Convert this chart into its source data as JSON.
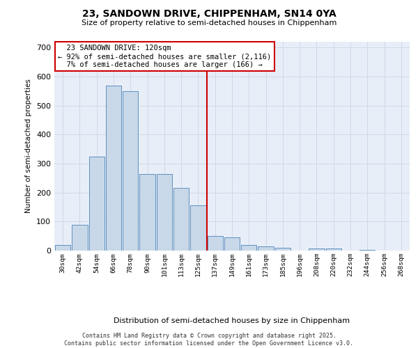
{
  "title1": "23, SANDOWN DRIVE, CHIPPENHAM, SN14 0YA",
  "title2": "Size of property relative to semi-detached houses in Chippenham",
  "xlabel": "Distribution of semi-detached houses by size in Chippenham",
  "ylabel": "Number of semi-detached properties",
  "categories": [
    "30sqm",
    "42sqm",
    "54sqm",
    "66sqm",
    "78sqm",
    "90sqm",
    "101sqm",
    "113sqm",
    "125sqm",
    "137sqm",
    "149sqm",
    "161sqm",
    "173sqm",
    "185sqm",
    "196sqm",
    "208sqm",
    "220sqm",
    "232sqm",
    "244sqm",
    "256sqm",
    "268sqm"
  ],
  "values": [
    20,
    90,
    325,
    570,
    550,
    265,
    265,
    215,
    155,
    50,
    45,
    20,
    15,
    10,
    0,
    8,
    8,
    0,
    2,
    0,
    0
  ],
  "bar_color": "#c8d8e8",
  "bar_edge_color": "#6090c0",
  "vline_x": 8.5,
  "annotation_text": "  23 SANDOWN DRIVE: 120sqm  \n← 92% of semi-detached houses are smaller (2,116)\n  7% of semi-detached houses are larger (166) →  ",
  "annotation_box_color": "#ffffff",
  "annotation_edge_color": "#cc0000",
  "vline_color": "#cc0000",
  "grid_color": "#d0d8e8",
  "background_color": "#e8eef8",
  "footer": "Contains HM Land Registry data © Crown copyright and database right 2025.\nContains public sector information licensed under the Open Government Licence v3.0.",
  "ylim": [
    0,
    720
  ],
  "yticks": [
    0,
    100,
    200,
    300,
    400,
    500,
    600,
    700
  ]
}
